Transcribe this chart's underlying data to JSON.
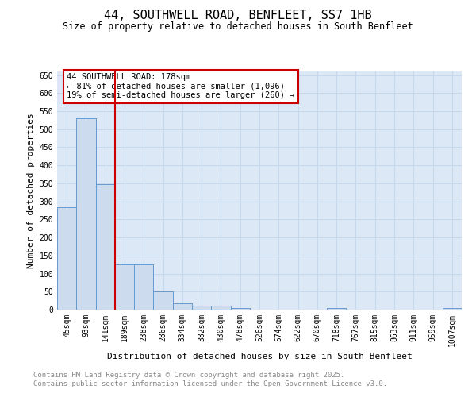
{
  "title": "44, SOUTHWELL ROAD, BENFLEET, SS7 1HB",
  "subtitle": "Size of property relative to detached houses in South Benfleet",
  "xlabel": "Distribution of detached houses by size in South Benfleet",
  "ylabel": "Number of detached properties",
  "bar_values": [
    283,
    530,
    348,
    125,
    125,
    50,
    18,
    10,
    10,
    5,
    0,
    0,
    0,
    0,
    5,
    0,
    0,
    0,
    0,
    0,
    5
  ],
  "categories": [
    "45sqm",
    "93sqm",
    "141sqm",
    "189sqm",
    "238sqm",
    "286sqm",
    "334sqm",
    "382sqm",
    "430sqm",
    "478sqm",
    "526sqm",
    "574sqm",
    "622sqm",
    "670sqm",
    "718sqm",
    "767sqm",
    "815sqm",
    "863sqm",
    "911sqm",
    "959sqm",
    "1007sqm"
  ],
  "bar_color": "#ccdcee",
  "bar_edge_color": "#6699cc",
  "grid_color": "#c8d8ec",
  "plot_bg_color": "#dce8f5",
  "fig_bg_color": "#ffffff",
  "vline_x": 2.5,
  "vline_color": "#cc0000",
  "annotation_text": "44 SOUTHWELL ROAD: 178sqm\n← 81% of detached houses are smaller (1,096)\n19% of semi-detached houses are larger (260) →",
  "annotation_box_color": "#ffffff",
  "annotation_box_edge": "#cc0000",
  "ylim": [
    0,
    660
  ],
  "yticks": [
    0,
    50,
    100,
    150,
    200,
    250,
    300,
    350,
    400,
    450,
    500,
    550,
    600,
    650
  ],
  "footer_text": "Contains HM Land Registry data © Crown copyright and database right 2025.\nContains public sector information licensed under the Open Government Licence v3.0.",
  "footer_color": "#888888"
}
